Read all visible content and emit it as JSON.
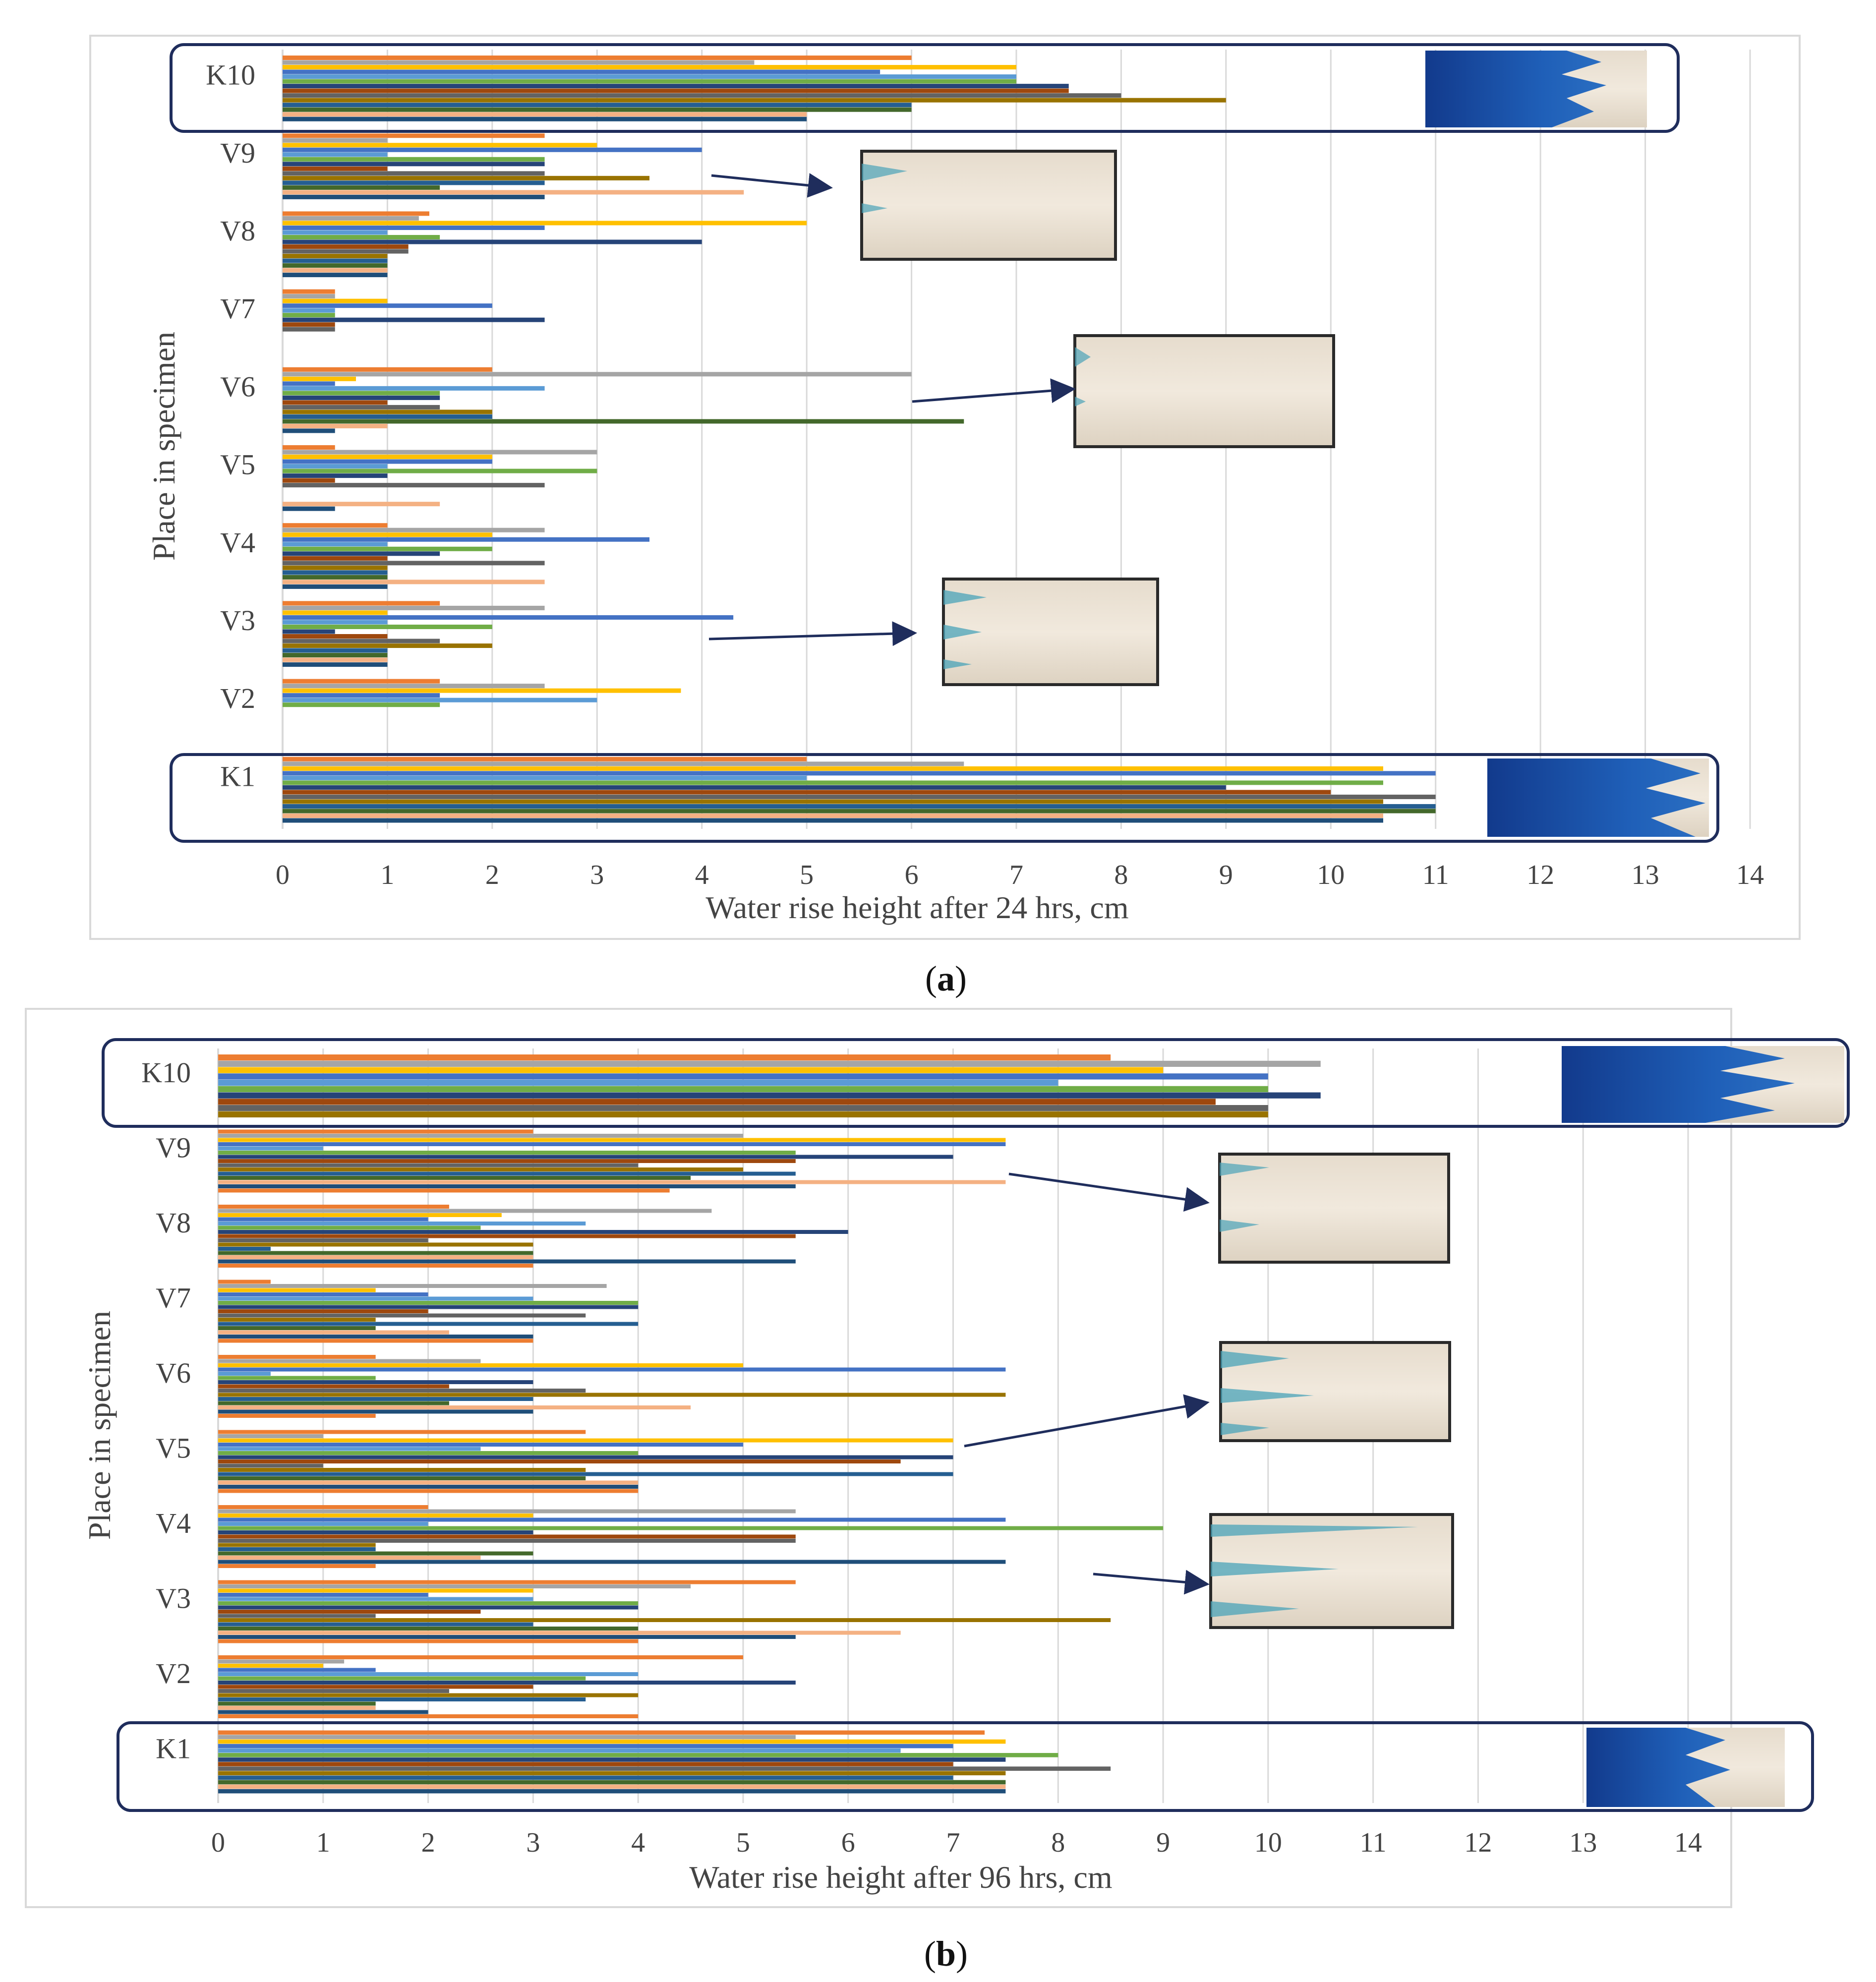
{
  "figure": {
    "panels": [
      {
        "caption_open": "(",
        "caption_letter": "a",
        "caption_close": ")"
      },
      {
        "caption_open": "(",
        "caption_letter": "b",
        "caption_close": ")"
      }
    ]
  },
  "colors": {
    "series": [
      "#ED7D31",
      "#A5A5A5",
      "#FFC000",
      "#4472C4",
      "#5B9BD5",
      "#70AD47",
      "#264478",
      "#9E480E",
      "#636363",
      "#997300",
      "#255E91",
      "#43682B",
      "#F4B183",
      "#1F4E79"
    ],
    "highlight_border": "#1F2D5C",
    "arrow": "#1F2D5C",
    "grid": "#D9D9D9"
  },
  "chart_data": [
    {
      "type": "bar",
      "orientation": "horizontal",
      "title": "",
      "xlabel": "Water rise height after 24 hrs, cm",
      "ylabel": "Place in specimen",
      "xlim": [
        0,
        14
      ],
      "xticks": [
        "0",
        "1",
        "2",
        "3",
        "4",
        "5",
        "6",
        "7",
        "8",
        "9",
        "10",
        "11",
        "12",
        "13",
        "14"
      ],
      "grid": true,
      "categories": [
        "K1",
        "V2",
        "V3",
        "V4",
        "V5",
        "V6",
        "V7",
        "V8",
        "V9",
        "K10"
      ],
      "highlighted": [
        "K1",
        "K10"
      ],
      "series_values": {
        "K1": [
          5,
          6.5,
          10.5,
          11,
          5,
          10.5,
          9,
          10,
          11,
          10.5,
          11,
          11,
          10.5,
          10.5
        ],
        "V2": [
          1.5,
          2.5,
          3.8,
          1.5,
          3,
          1.5,
          0,
          0,
          0,
          0,
          0,
          0,
          0,
          0
        ],
        "V3": [
          1.5,
          2.5,
          1,
          4.3,
          1,
          2,
          0.5,
          1,
          1.5,
          2,
          1,
          1,
          1,
          1
        ],
        "V4": [
          1,
          2.5,
          2,
          3.5,
          1,
          2,
          1.5,
          1,
          2.5,
          1,
          1,
          1,
          2.5,
          1
        ],
        "V5": [
          0.5,
          3,
          2,
          2,
          1,
          3,
          1,
          0.5,
          2.5,
          0,
          0,
          0,
          1.5,
          0.5
        ],
        "V6": [
          2,
          6,
          0.7,
          0.5,
          2.5,
          1.5,
          1.5,
          1,
          1.5,
          2,
          2,
          6.5,
          1,
          0.5
        ],
        "V7": [
          0.5,
          0.5,
          1,
          2,
          0.5,
          0.5,
          2.5,
          0.5,
          0.5,
          0,
          0,
          0,
          0,
          0
        ],
        "V8": [
          1.4,
          1.3,
          5,
          2.5,
          1,
          1.5,
          4,
          1.2,
          1.2,
          1,
          1,
          1,
          1,
          1
        ],
        "V9": [
          2.5,
          1,
          3,
          4,
          1,
          2.5,
          2.5,
          1,
          2.5,
          3.5,
          2.5,
          1.5,
          4.4,
          2.5
        ],
        "K10": [
          6,
          4.5,
          7,
          5.7,
          7,
          7,
          7.5,
          7.5,
          8,
          9,
          6,
          6,
          5,
          5
        ]
      },
      "photos": [
        {
          "category": "K10",
          "type": "stained specimen photo"
        },
        {
          "category": "V9",
          "type": "specimen photo"
        },
        {
          "category": "V6",
          "type": "specimen photo"
        },
        {
          "category": "V3",
          "type": "specimen photo"
        },
        {
          "category": "K1",
          "type": "stained specimen photo"
        }
      ]
    },
    {
      "type": "bar",
      "orientation": "horizontal",
      "title": "",
      "xlabel": "Water rise height after  96 hrs, cm",
      "ylabel": "Place in specimen",
      "xlim": [
        0,
        14
      ],
      "xticks": [
        "0",
        "1",
        "2",
        "3",
        "4",
        "5",
        "6",
        "7",
        "8",
        "9",
        "10",
        "11",
        "12",
        "13",
        "14"
      ],
      "grid": true,
      "categories": [
        "K1",
        "V2",
        "V3",
        "V4",
        "V5",
        "V6",
        "V7",
        "V8",
        "V9",
        "K10"
      ],
      "highlighted": [
        "K1",
        "K10"
      ],
      "series_values": {
        "K1": [
          7.3,
          5.5,
          7.5,
          7,
          6.5,
          8,
          7.5,
          7,
          8.5,
          7.5,
          7,
          7.5,
          7.5,
          7.5
        ],
        "V2": [
          5,
          1.2,
          1,
          1.5,
          4,
          3.5,
          5.5,
          3,
          2.2,
          4,
          3.5,
          1.5,
          1.5,
          2,
          4
        ],
        "V3": [
          5.5,
          4.5,
          3,
          2,
          3,
          4,
          4,
          2.5,
          1.5,
          8.5,
          3,
          4,
          6.5,
          5.5,
          4
        ],
        "V4": [
          2,
          5.5,
          3,
          7.5,
          2,
          9,
          3,
          5.5,
          5.5,
          1.5,
          1.5,
          3,
          2.5,
          7.5,
          1.5
        ],
        "V5": [
          3.5,
          1,
          7,
          5,
          2.5,
          4,
          7,
          6.5,
          1,
          3.5,
          7,
          3.5,
          4,
          4,
          4
        ],
        "V6": [
          1.5,
          2.5,
          5,
          7.5,
          0.5,
          1.5,
          3,
          2.2,
          3.5,
          7.5,
          3,
          2.2,
          4.5,
          3,
          1.5
        ],
        "V7": [
          0.5,
          3.7,
          1.5,
          2,
          3,
          4,
          4,
          2,
          3.5,
          1.5,
          4,
          1.5,
          2.2,
          3,
          3
        ],
        "V8": [
          2.2,
          4.7,
          2.7,
          2,
          3.5,
          2.5,
          6,
          5.5,
          2,
          3,
          0.5,
          3,
          3,
          5.5,
          3
        ],
        "V9": [
          3,
          5,
          7.5,
          7.5,
          1,
          5.5,
          7,
          5.5,
          4,
          5,
          5.5,
          4.5,
          7.5,
          5.5,
          4.3
        ],
        "K10": [
          8.5,
          10.5,
          9,
          10,
          8,
          10,
          10.5,
          9.5,
          10,
          10
        ]
      },
      "photos": [
        {
          "category": "K10",
          "type": "stained specimen photo"
        },
        {
          "category": "V9",
          "type": "specimen photo"
        },
        {
          "category": "V6",
          "type": "specimen photo"
        },
        {
          "category": "V4",
          "type": "specimen photo"
        },
        {
          "category": "K1",
          "type": "stained specimen photo"
        }
      ]
    }
  ]
}
